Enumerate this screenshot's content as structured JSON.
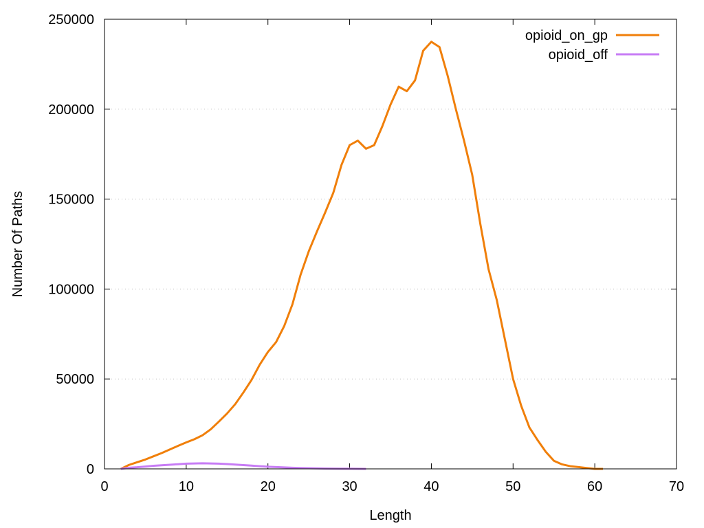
{
  "chart_data": {
    "type": "line",
    "xlabel": "Length",
    "ylabel": "Number Of Paths",
    "xlim": [
      0,
      70
    ],
    "ylim": [
      0,
      250000
    ],
    "xticks": [
      "0",
      "10",
      "20",
      "30",
      "40",
      "50",
      "60",
      "70"
    ],
    "yticks": [
      "0",
      "50000",
      "100000",
      "150000",
      "200000",
      "250000"
    ],
    "grid": "horizontal dotted",
    "legend_position": "top-right",
    "series": [
      {
        "name": "opioid_on_gp",
        "color": "#f07f0a",
        "x": [
          2,
          3,
          4,
          5,
          6,
          7,
          8,
          9,
          10,
          11,
          12,
          13,
          14,
          15,
          16,
          17,
          18,
          19,
          20,
          21,
          22,
          23,
          24,
          25,
          26,
          27,
          28,
          29,
          30,
          31,
          32,
          33,
          34,
          35,
          36,
          37,
          38,
          39,
          40,
          41,
          42,
          43,
          44,
          45,
          46,
          47,
          48,
          49,
          50,
          51,
          52,
          53,
          54,
          55,
          56,
          57,
          58,
          59,
          60,
          61
        ],
        "y": [
          0,
          2200,
          3700,
          5200,
          7000,
          8800,
          10800,
          12800,
          14700,
          16500,
          18700,
          22000,
          26300,
          30800,
          36000,
          42500,
          49500,
          58000,
          65000,
          70500,
          79500,
          91500,
          108000,
          121000,
          132000,
          142500,
          153500,
          169000,
          180000,
          182500,
          178000,
          180000,
          190500,
          202500,
          212500,
          210000,
          216000,
          232500,
          237500,
          234500,
          218500,
          200000,
          182500,
          163500,
          136000,
          111000,
          94000,
          72000,
          50000,
          35000,
          23000,
          16000,
          9500,
          4500,
          2500,
          1500,
          1000,
          500,
          0,
          0
        ]
      },
      {
        "name": "opioid_off",
        "color": "#c77cf5",
        "x": [
          2,
          3,
          4,
          5,
          6,
          7,
          8,
          9,
          10,
          11,
          12,
          13,
          14,
          15,
          16,
          17,
          18,
          19,
          20,
          21,
          22,
          23,
          24,
          25,
          26,
          27,
          28,
          29,
          30,
          31,
          32
        ],
        "y": [
          0,
          600,
          900,
          1300,
          1700,
          2000,
          2300,
          2600,
          2900,
          3000,
          3100,
          3000,
          2900,
          2700,
          2400,
          2100,
          1800,
          1500,
          1200,
          1000,
          800,
          600,
          500,
          400,
          300,
          200,
          150,
          100,
          80,
          50,
          0
        ]
      }
    ]
  }
}
